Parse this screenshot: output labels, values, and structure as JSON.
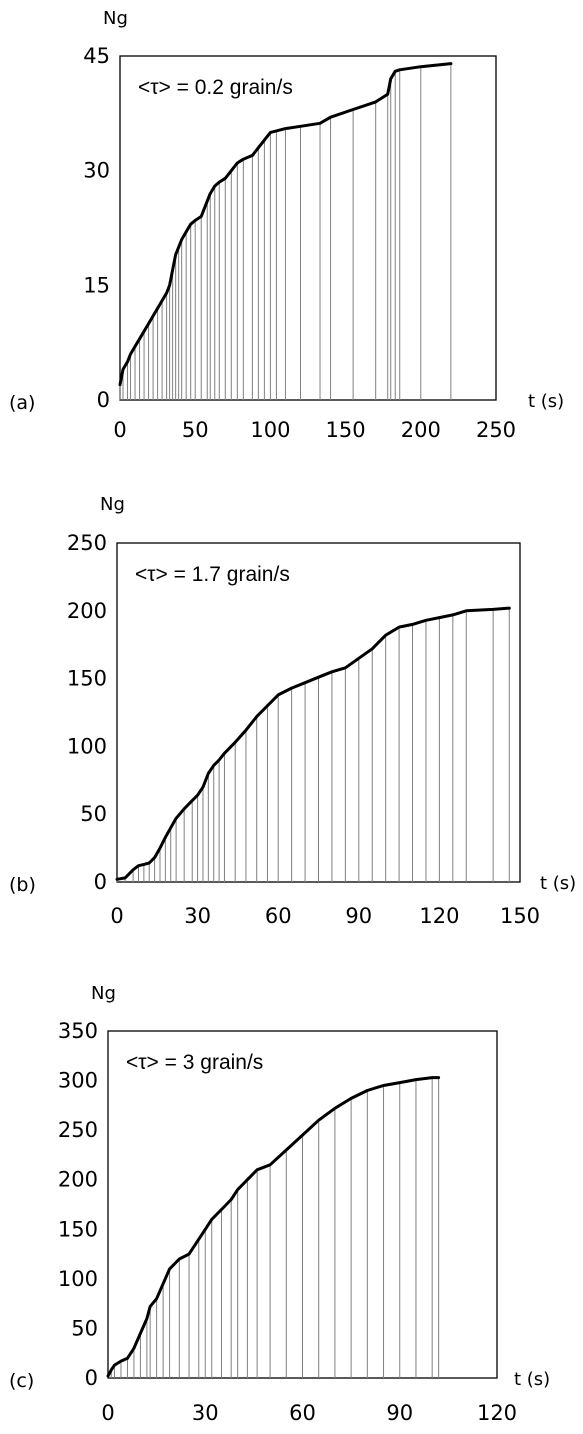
{
  "figure": {
    "panels": [
      {
        "id": "a",
        "label": "(a)",
        "rate_text": "<τ> = 0.2 grain/s"
      },
      {
        "id": "b",
        "label": "(b)",
        "rate_text": "<τ> = 1.7 grain/s"
      },
      {
        "id": "c",
        "label": "(c)",
        "rate_text": "<τ> = 3 grain/s"
      }
    ]
  },
  "chart_data": [
    {
      "type": "line",
      "panel_label": "(a)",
      "annotation": "<τ> = 0.2 grain/s",
      "xlabel": "t (s)",
      "ylabel": "Ng",
      "xlim": [
        0,
        250
      ],
      "ylim": [
        0,
        45
      ],
      "xticks": [
        0,
        50,
        100,
        150,
        200,
        250
      ],
      "yticks": [
        0,
        15,
        30,
        45
      ],
      "grid": false,
      "series": [
        {
          "x": [
            0,
            2,
            5,
            7,
            10,
            13,
            16,
            19,
            22,
            25,
            28,
            31,
            33,
            35,
            37,
            39,
            41,
            44,
            47,
            50,
            54,
            58,
            60,
            63,
            66,
            70,
            74,
            78,
            82,
            88,
            92,
            96,
            100,
            104,
            110,
            120,
            133,
            140,
            155,
            170,
            178,
            180,
            183,
            186,
            200,
            220
          ],
          "y": [
            2,
            4,
            5,
            6,
            7,
            8,
            9,
            10,
            11,
            12,
            13,
            14,
            15,
            17,
            19,
            20,
            21,
            22,
            23,
            23.5,
            24,
            26,
            27,
            28,
            28.5,
            29,
            30,
            31,
            31.5,
            32,
            33,
            34,
            35,
            35.2,
            35.5,
            35.8,
            36.2,
            37,
            38,
            39,
            40,
            42,
            43,
            43.2,
            43.6,
            44
          ]
        }
      ]
    },
    {
      "type": "line",
      "panel_label": "(b)",
      "annotation": "<τ> = 1.7 grain/s",
      "xlabel": "t (s)",
      "ylabel": "Ng",
      "xlim": [
        0,
        150
      ],
      "ylim": [
        0,
        250
      ],
      "xticks": [
        0,
        30,
        60,
        90,
        120,
        150
      ],
      "yticks": [
        0,
        50,
        100,
        150,
        200,
        250
      ],
      "grid": false,
      "series": [
        {
          "x": [
            0,
            3,
            6,
            8,
            10,
            12,
            14,
            16,
            18,
            20,
            22,
            25,
            28,
            30,
            32,
            34,
            36,
            38,
            40,
            44,
            48,
            52,
            56,
            60,
            65,
            70,
            75,
            80,
            85,
            90,
            95,
            100,
            105,
            110,
            115,
            120,
            125,
            130,
            140,
            146
          ],
          "y": [
            2,
            3,
            9,
            12,
            13,
            14,
            18,
            25,
            33,
            40,
            47,
            54,
            60,
            64,
            70,
            80,
            86,
            90,
            95,
            103,
            112,
            122,
            130,
            138,
            143,
            147,
            151,
            155,
            158,
            165,
            172,
            182,
            188,
            190,
            193,
            195,
            197,
            200,
            201,
            202
          ]
        }
      ]
    },
    {
      "type": "line",
      "panel_label": "(c)",
      "annotation": "<τ> = 3 grain/s",
      "xlabel": "t (s)",
      "ylabel": "Ng",
      "xlim": [
        0,
        120
      ],
      "ylim": [
        0,
        350
      ],
      "xticks": [
        0,
        30,
        60,
        90,
        120
      ],
      "yticks": [
        0,
        50,
        100,
        150,
        200,
        250,
        300,
        350
      ],
      "grid": false,
      "series": [
        {
          "x": [
            0,
            1,
            2,
            4,
            6,
            8,
            10,
            12,
            13,
            15,
            17,
            19,
            22,
            25,
            28,
            30,
            32,
            35,
            38,
            40,
            43,
            46,
            50,
            55,
            60,
            65,
            70,
            75,
            80,
            85,
            90,
            95,
            100,
            102
          ],
          "y": [
            2,
            8,
            13,
            17,
            20,
            30,
            45,
            60,
            72,
            80,
            95,
            110,
            120,
            125,
            140,
            150,
            160,
            170,
            180,
            190,
            200,
            210,
            215,
            230,
            245,
            260,
            272,
            282,
            290,
            295,
            298,
            301,
            303,
            303
          ]
        }
      ]
    }
  ]
}
